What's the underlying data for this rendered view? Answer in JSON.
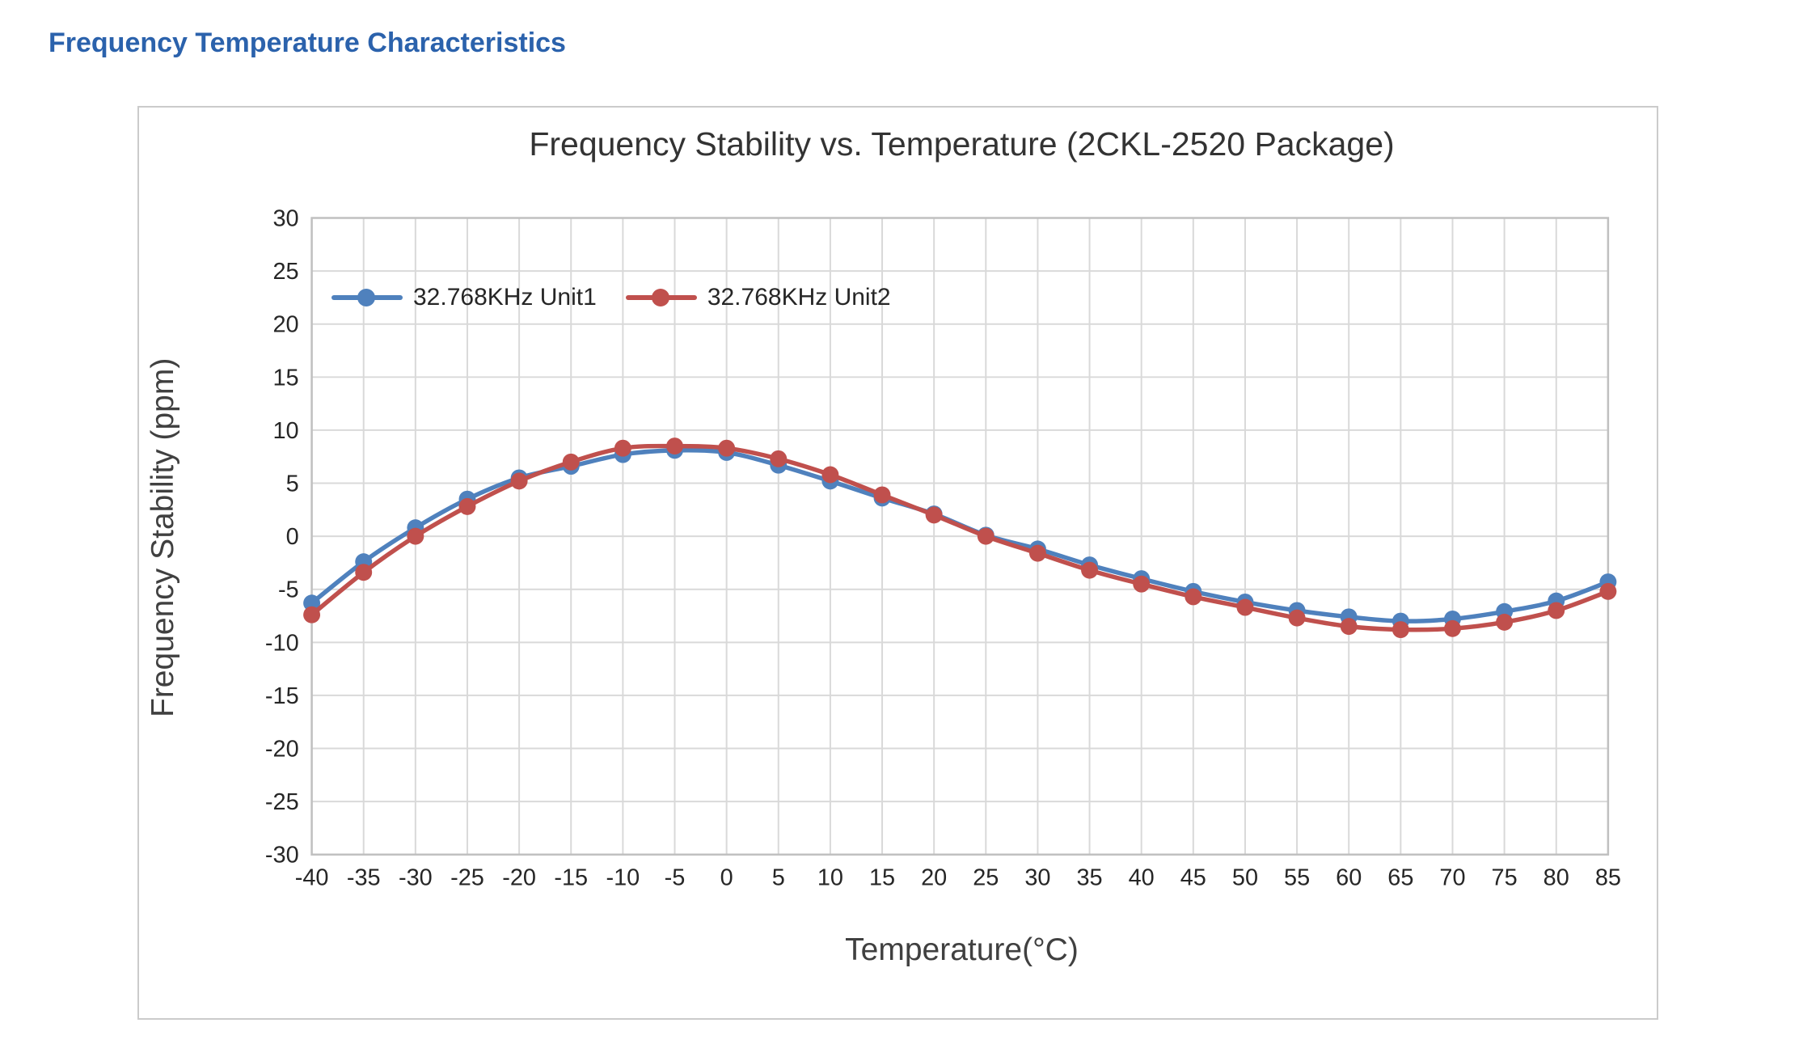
{
  "page": {
    "heading": "Frequency Temperature Characteristics",
    "heading_color": "#2b62ac"
  },
  "chart_data": {
    "type": "line",
    "title": "Frequency Stability vs. Temperature (2CKL-2520 Package)",
    "xlabel": "Temperature(°C)",
    "ylabel": "Frequency Stability (ppm)",
    "x": [
      -40,
      -35,
      -30,
      -25,
      -20,
      -15,
      -10,
      -5,
      0,
      5,
      10,
      15,
      20,
      25,
      30,
      35,
      40,
      45,
      50,
      55,
      60,
      65,
      70,
      75,
      80,
      85
    ],
    "xticks": [
      -40,
      -35,
      -30,
      -25,
      -20,
      -15,
      -10,
      -5,
      0,
      5,
      10,
      15,
      20,
      25,
      30,
      35,
      40,
      45,
      50,
      55,
      60,
      65,
      70,
      75,
      80,
      85
    ],
    "yticks": [
      30,
      25,
      20,
      15,
      10,
      5,
      0,
      -5,
      -10,
      -15,
      -20,
      -25,
      -30
    ],
    "xlim": [
      -40,
      85
    ],
    "ylim": [
      -30,
      30
    ],
    "grid": true,
    "smooth": true,
    "marker": "circle",
    "legend_position": "inside-top-left",
    "series": [
      {
        "name": "32.768KHz Unit1",
        "color": "#4F81BD",
        "values": [
          -6.3,
          -2.4,
          0.8,
          3.5,
          5.5,
          6.6,
          7.7,
          8.1,
          7.9,
          6.7,
          5.2,
          3.6,
          2.1,
          0.1,
          -1.2,
          -2.7,
          -4.0,
          -5.2,
          -6.2,
          -7.0,
          -7.6,
          -8.0,
          -7.8,
          -7.1,
          -6.1,
          -4.3
        ]
      },
      {
        "name": "32.768KHz Unit2",
        "color": "#C0504D",
        "values": [
          -7.4,
          -3.4,
          0.0,
          2.8,
          5.2,
          7.0,
          8.3,
          8.5,
          8.3,
          7.3,
          5.8,
          3.9,
          2.0,
          0.0,
          -1.6,
          -3.2,
          -4.5,
          -5.7,
          -6.7,
          -7.7,
          -8.5,
          -8.8,
          -8.7,
          -8.1,
          -7.0,
          -5.2
        ]
      }
    ]
  }
}
